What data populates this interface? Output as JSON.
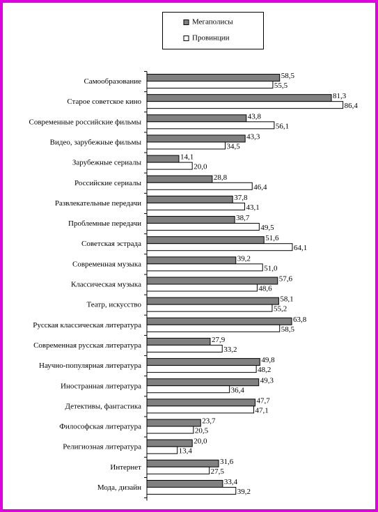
{
  "chart_data": {
    "type": "hbar",
    "categories": [
      "Самообразование",
      "Старое советское кино",
      "Современные российские фильмы",
      "Видео, зарубежные фильмы",
      "Зарубежные сериалы",
      "Российские сериалы",
      "Развлекательные передачи",
      "Проблемные передачи",
      "Советская эстрада",
      "Современная музыка",
      "Классическая музыка",
      "Театр, искусство",
      "Русская классическая литература",
      "Современная русская литература",
      "Научно-популярная литература",
      "Иностранная литература",
      "Детективы, фантастика",
      "Философская литература",
      "Религиозная литература",
      "Интернет",
      "Мода, дизайн"
    ],
    "series": [
      {
        "name": "Мегаполисы",
        "color": "#808080",
        "values": [
          58.5,
          81.3,
          43.8,
          43.3,
          14.1,
          28.8,
          37.8,
          38.7,
          51.6,
          39.2,
          57.6,
          58.1,
          63.8,
          27.9,
          49.8,
          49.3,
          47.7,
          23.7,
          20.0,
          31.6,
          33.4
        ],
        "value_labels": [
          "58,5",
          "81,3",
          "43,8",
          "43,3",
          "14,1",
          "28,8",
          "37,8",
          "38,7",
          "51,6",
          "39,2",
          "57,6",
          "58,1",
          "63,8",
          "27,9",
          "49,8",
          "49,3",
          "47,7",
          "23,7",
          "20,0",
          "31,6",
          "33,4"
        ]
      },
      {
        "name": "Провинции",
        "color": "#ffffff",
        "values": [
          55.5,
          86.4,
          56.1,
          34.5,
          20.0,
          46.4,
          43.1,
          49.5,
          64.1,
          51.0,
          48.6,
          55.2,
          58.5,
          33.2,
          48.2,
          36.4,
          47.1,
          20.5,
          13.4,
          27.5,
          39.2
        ],
        "value_labels": [
          "55,5",
          "86,4",
          "56,1",
          "34,5",
          "20,0",
          "46,4",
          "43,1",
          "49,5",
          "64,1",
          "51,0",
          "48,6",
          "55,2",
          "58,5",
          "33,2",
          "48,2",
          "36,4",
          "47,1",
          "20,5",
          "13,4",
          "27,5",
          "39,2"
        ]
      }
    ]
  }
}
